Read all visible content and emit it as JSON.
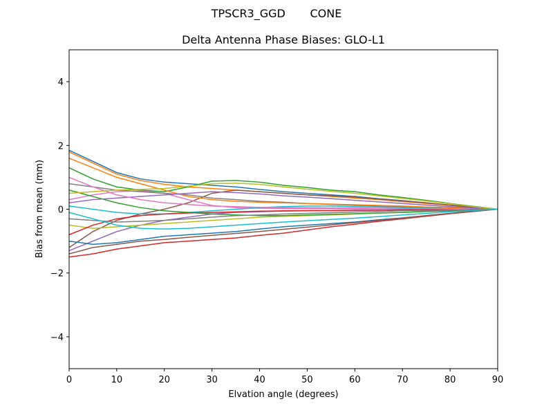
{
  "chart_data": {
    "type": "line",
    "suptitle": "TPSCR3_GGD       CONE",
    "title": "Delta Antenna Phase Biases: GLO-L1",
    "xlabel": "Elvation angle (degrees)",
    "ylabel": "Bias from mean (mm)",
    "xlim": [
      0,
      90
    ],
    "ylim": [
      -5,
      5
    ],
    "xticks": [
      0,
      10,
      20,
      30,
      40,
      50,
      60,
      70,
      80,
      90
    ],
    "yticks": [
      {
        "value": -4,
        "label": "−4"
      },
      {
        "value": -2,
        "label": "−2"
      },
      0,
      2,
      4
    ],
    "x": [
      0,
      5,
      10,
      15,
      20,
      25,
      30,
      35,
      40,
      45,
      50,
      55,
      60,
      65,
      70,
      75,
      80,
      85,
      90
    ],
    "series": [
      {
        "color": "#1f77b4",
        "values": [
          1.85,
          1.5,
          1.15,
          0.95,
          0.85,
          0.8,
          0.75,
          0.7,
          0.62,
          0.55,
          0.5,
          0.45,
          0.4,
          0.33,
          0.27,
          0.2,
          0.13,
          0.07,
          0
        ]
      },
      {
        "color": "#ff7f0e",
        "values": [
          1.8,
          1.45,
          1.1,
          0.9,
          0.78,
          0.7,
          0.65,
          0.6,
          0.55,
          0.5,
          0.45,
          0.4,
          0.35,
          0.3,
          0.24,
          0.18,
          0.12,
          0.06,
          0
        ]
      },
      {
        "color": "#2ca02c",
        "values": [
          1.3,
          0.95,
          0.7,
          0.6,
          0.55,
          0.7,
          0.88,
          0.9,
          0.85,
          0.75,
          0.68,
          0.6,
          0.55,
          0.45,
          0.37,
          0.28,
          0.18,
          0.09,
          0
        ]
      },
      {
        "color": "#d62728",
        "values": [
          -1.5,
          -1.4,
          -1.25,
          -1.15,
          -1.05,
          -1.0,
          -0.95,
          -0.9,
          -0.82,
          -0.75,
          -0.65,
          -0.55,
          -0.47,
          -0.38,
          -0.3,
          -0.22,
          -0.14,
          -0.07,
          0
        ]
      },
      {
        "color": "#9467bd",
        "values": [
          -1.3,
          -1.0,
          -0.7,
          -0.5,
          -0.35,
          -0.25,
          -0.15,
          -0.1,
          -0.08,
          -0.06,
          -0.05,
          -0.05,
          -0.04,
          -0.03,
          -0.02,
          -0.02,
          -0.01,
          0,
          0
        ]
      },
      {
        "color": "#8c564b",
        "values": [
          -1.2,
          -0.7,
          -0.35,
          -0.15,
          0,
          0.2,
          0.5,
          0.6,
          0.55,
          0.5,
          0.45,
          0.42,
          0.38,
          0.32,
          0.26,
          0.2,
          0.13,
          0.06,
          0
        ]
      },
      {
        "color": "#e377c2",
        "values": [
          0.3,
          0.45,
          0.55,
          0.58,
          0.5,
          0.3,
          0.12,
          0.05,
          0.03,
          0.02,
          0.02,
          0.02,
          0.01,
          0.01,
          0.01,
          0,
          0,
          0,
          0
        ]
      },
      {
        "color": "#7f7f7f",
        "values": [
          0.8,
          0.7,
          0.6,
          0.55,
          0.5,
          0.45,
          0.35,
          0.3,
          0.25,
          0.22,
          0.18,
          0.15,
          0.12,
          0.1,
          0.08,
          0.05,
          0.03,
          0.01,
          0
        ]
      },
      {
        "color": "#bcbd22",
        "values": [
          -0.5,
          -0.6,
          -0.55,
          -0.5,
          -0.45,
          -0.4,
          -0.35,
          -0.3,
          -0.25,
          -0.22,
          -0.2,
          -0.18,
          -0.15,
          -0.12,
          -0.1,
          -0.07,
          -0.05,
          -0.02,
          0
        ]
      },
      {
        "color": "#17becf",
        "values": [
          0.1,
          0.0,
          -0.1,
          -0.15,
          -0.15,
          -0.1,
          -0.05,
          0,
          0.05,
          0.08,
          0.1,
          0.1,
          0.08,
          0.07,
          0.05,
          0.03,
          0.02,
          0.01,
          0
        ]
      },
      {
        "color": "#1f77b4",
        "values": [
          -1.0,
          -1.1,
          -1.05,
          -0.95,
          -0.85,
          -0.8,
          -0.75,
          -0.7,
          -0.62,
          -0.55,
          -0.5,
          -0.45,
          -0.4,
          -0.33,
          -0.27,
          -0.2,
          -0.13,
          -0.06,
          0
        ]
      },
      {
        "color": "#ff7f0e",
        "values": [
          1.6,
          1.3,
          1.0,
          0.8,
          0.6,
          0.4,
          0.3,
          0.25,
          0.22,
          0.2,
          0.18,
          0.16,
          0.14,
          0.12,
          0.1,
          0.07,
          0.05,
          0.02,
          0
        ]
      },
      {
        "color": "#2ca02c",
        "values": [
          0.6,
          0.4,
          0.2,
          0.05,
          -0.05,
          -0.1,
          -0.15,
          -0.18,
          -0.2,
          -0.2,
          -0.18,
          -0.16,
          -0.14,
          -0.12,
          -0.1,
          -0.07,
          -0.05,
          -0.02,
          0
        ]
      },
      {
        "color": "#d62728",
        "values": [
          -0.8,
          -0.5,
          -0.3,
          -0.2,
          -0.15,
          -0.12,
          -0.1,
          -0.08,
          -0.06,
          -0.05,
          -0.04,
          -0.04,
          -0.03,
          -0.03,
          -0.02,
          -0.01,
          -0.01,
          0,
          0
        ]
      },
      {
        "color": "#9467bd",
        "values": [
          0.2,
          0.3,
          0.35,
          0.4,
          0.45,
          0.5,
          0.55,
          0.52,
          0.48,
          0.42,
          0.38,
          0.33,
          0.28,
          0.23,
          0.18,
          0.13,
          0.08,
          0.04,
          0
        ]
      },
      {
        "color": "#8c564b",
        "values": [
          -1.4,
          -1.2,
          -1.1,
          -1.0,
          -0.95,
          -0.88,
          -0.82,
          -0.76,
          -0.7,
          -0.63,
          -0.56,
          -0.49,
          -0.42,
          -0.35,
          -0.28,
          -0.2,
          -0.13,
          -0.06,
          0
        ]
      },
      {
        "color": "#e377c2",
        "values": [
          1.0,
          0.7,
          0.45,
          0.3,
          0.2,
          0.15,
          0.1,
          0.08,
          0.06,
          0.05,
          0.05,
          0.04,
          0.04,
          0.03,
          0.02,
          0.02,
          0.01,
          0,
          0
        ]
      },
      {
        "color": "#7f7f7f",
        "values": [
          -0.3,
          -0.35,
          -0.4,
          -0.38,
          -0.35,
          -0.3,
          -0.25,
          -0.2,
          -0.18,
          -0.15,
          -0.13,
          -0.11,
          -0.09,
          -0.07,
          -0.05,
          -0.04,
          -0.03,
          -0.01,
          0
        ]
      },
      {
        "color": "#bcbd22",
        "values": [
          0.5,
          0.55,
          0.6,
          0.62,
          0.65,
          0.72,
          0.8,
          0.82,
          0.78,
          0.7,
          0.63,
          0.56,
          0.5,
          0.42,
          0.34,
          0.26,
          0.17,
          0.08,
          0
        ]
      },
      {
        "color": "#17becf",
        "values": [
          -0.1,
          -0.3,
          -0.5,
          -0.6,
          -0.62,
          -0.6,
          -0.55,
          -0.5,
          -0.45,
          -0.4,
          -0.36,
          -0.32,
          -0.28,
          -0.23,
          -0.18,
          -0.13,
          -0.08,
          -0.04,
          0
        ]
      }
    ]
  }
}
